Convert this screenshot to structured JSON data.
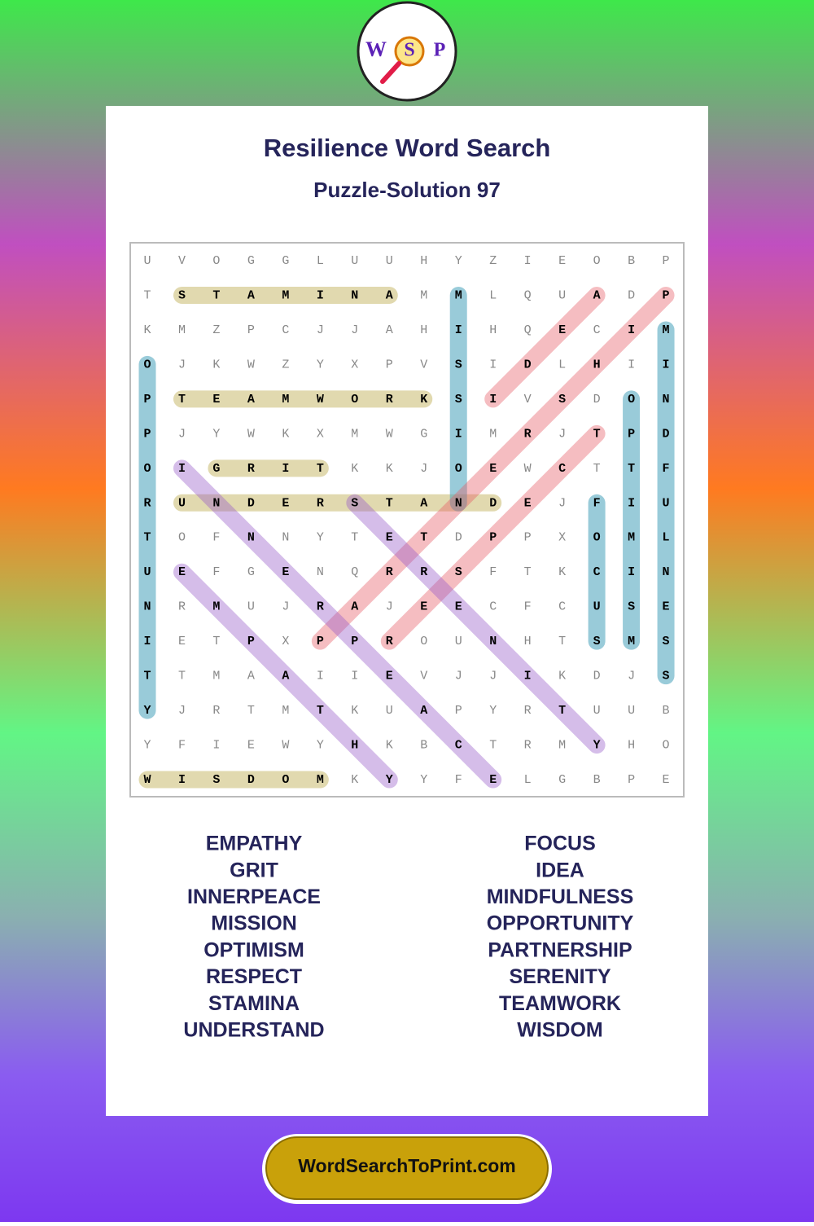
{
  "logo": [
    "W",
    "S",
    "P"
  ],
  "title": "Resilience Word Search",
  "subtitle": "Puzzle-Solution 97",
  "grid": [
    [
      "U",
      "V",
      "O",
      "G",
      "G",
      "L",
      "U",
      "U",
      "H",
      "Y",
      "Z",
      "I",
      "E",
      "O",
      "B",
      "P"
    ],
    [
      "T",
      "S",
      "T",
      "A",
      "M",
      "I",
      "N",
      "A",
      "M",
      "M",
      "L",
      "Q",
      "U",
      "A",
      "D",
      "P"
    ],
    [
      "K",
      "M",
      "Z",
      "P",
      "C",
      "J",
      "J",
      "A",
      "H",
      "I",
      "H",
      "Q",
      "E",
      "C",
      "I",
      "M"
    ],
    [
      "O",
      "J",
      "K",
      "W",
      "Z",
      "Y",
      "X",
      "P",
      "V",
      "S",
      "I",
      "D",
      "L",
      "H",
      "I",
      "I"
    ],
    [
      "P",
      "T",
      "E",
      "A",
      "M",
      "W",
      "O",
      "R",
      "K",
      "S",
      "I",
      "V",
      "S",
      "D",
      "O",
      "N"
    ],
    [
      "P",
      "J",
      "Y",
      "W",
      "K",
      "X",
      "M",
      "W",
      "G",
      "I",
      "M",
      "R",
      "J",
      "T",
      "P",
      "D"
    ],
    [
      "O",
      "I",
      "G",
      "R",
      "I",
      "T",
      "K",
      "K",
      "J",
      "O",
      "E",
      "W",
      "C",
      "T",
      "T",
      "F"
    ],
    [
      "R",
      "U",
      "N",
      "D",
      "E",
      "R",
      "S",
      "T",
      "A",
      "N",
      "D",
      "E",
      "J",
      "F",
      "I",
      "U"
    ],
    [
      "T",
      "O",
      "F",
      "N",
      "N",
      "Y",
      "T",
      "E",
      "T",
      "D",
      "P",
      "P",
      "X",
      "O",
      "M",
      "L"
    ],
    [
      "U",
      "E",
      "F",
      "G",
      "E",
      "N",
      "Q",
      "R",
      "R",
      "S",
      "F",
      "T",
      "K",
      "C",
      "I",
      "N"
    ],
    [
      "N",
      "R",
      "M",
      "U",
      "J",
      "R",
      "A",
      "J",
      "E",
      "E",
      "C",
      "F",
      "C",
      "U",
      "S",
      "E"
    ],
    [
      "I",
      "E",
      "T",
      "P",
      "X",
      "P",
      "P",
      "R",
      "O",
      "U",
      "N",
      "H",
      "T",
      "S",
      "M",
      "S"
    ],
    [
      "T",
      "T",
      "M",
      "A",
      "A",
      "I",
      "I",
      "E",
      "V",
      "J",
      "J",
      "I",
      "K",
      "D",
      "J",
      "S"
    ],
    [
      "Y",
      "J",
      "R",
      "T",
      "M",
      "T",
      "K",
      "U",
      "A",
      "P",
      "Y",
      "R",
      "T",
      "U",
      "U",
      "B"
    ],
    [
      "Y",
      "F",
      "I",
      "E",
      "W",
      "Y",
      "H",
      "K",
      "B",
      "C",
      "T",
      "R",
      "M",
      "Y",
      "H",
      "O"
    ],
    [
      "W",
      "I",
      "S",
      "D",
      "O",
      "M",
      "K",
      "Y",
      "Y",
      "F",
      "E",
      "L",
      "G",
      "B",
      "P",
      "E"
    ]
  ],
  "words_left": [
    "EMPATHY",
    "GRIT",
    "INNERPEACE",
    "MISSION",
    "OPTIMISM",
    "RESPECT",
    "STAMINA",
    "UNDERSTAND"
  ],
  "words_right": [
    "FOCUS",
    "IDEA",
    "MINDFULNESS",
    "OPPORTUNITY",
    "PARTNERSHIP",
    "SERENITY",
    "TEAMWORK",
    "WISDOM"
  ],
  "footer": "WordSearchToPrint.com"
}
